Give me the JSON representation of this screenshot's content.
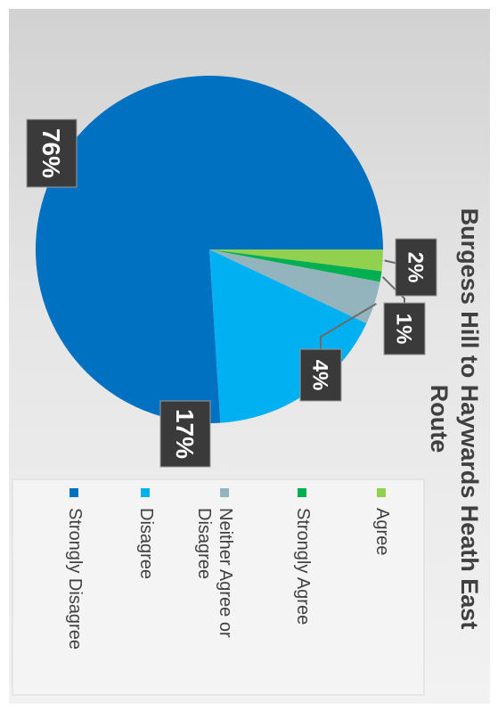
{
  "chart_data": {
    "type": "pie",
    "title": "Burgess Hill to Haywards Heath East Route",
    "title_lines": [
      "Burgess Hill to Haywards Heath East",
      "Route"
    ],
    "categories": [
      "Agree",
      "Strongly Agree",
      "Neither Agree or Disagree",
      "Disagree",
      "Strongly Disagree"
    ],
    "values": [
      2,
      1,
      4,
      17,
      76
    ],
    "data_labels": [
      "2%",
      "1%",
      "4%",
      "17%",
      "76%"
    ],
    "colors": [
      "#92d050",
      "#00b050",
      "#93b4bd",
      "#00b0f0",
      "#0070c0"
    ],
    "legend": {
      "placement": "bottom",
      "entries": [
        {
          "lines": [
            "Agree"
          ]
        },
        {
          "lines": [
            "Strongly Agree"
          ]
        },
        {
          "lines": [
            "Neither Agree or",
            "Disagree"
          ]
        },
        {
          "lines": [
            "Disagree"
          ]
        },
        {
          "lines": [
            "Strongly Disagree"
          ]
        }
      ]
    },
    "rotation": "image is rotated 90 degrees clockwise"
  }
}
